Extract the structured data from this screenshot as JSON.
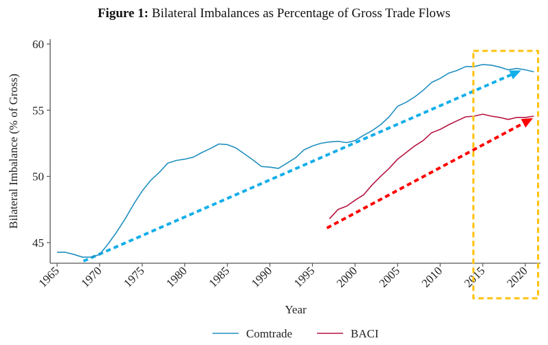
{
  "chart_data": {
    "type": "line",
    "title_prefix": "Figure 1:",
    "title": "Bilateral Imbalances as Percentage of Gross Trade Flows",
    "xlabel": "Year",
    "ylabel": "Bilateral Imbalance (% of Gross)",
    "xlim": [
      1964,
      2022
    ],
    "ylim": [
      43.5,
      60.3
    ],
    "xticks": [
      1965,
      1970,
      1975,
      1980,
      1985,
      1990,
      1995,
      2000,
      2005,
      2010,
      2015,
      2020
    ],
    "yticks": [
      45,
      50,
      55,
      60
    ],
    "grid": false,
    "legend_position": "bottom",
    "series": [
      {
        "name": "Comtrade",
        "color": "#1f8fbf",
        "x": [
          1965,
          1966,
          1967,
          1968,
          1969,
          1970,
          1971,
          1972,
          1973,
          1974,
          1975,
          1976,
          1977,
          1978,
          1979,
          1980,
          1981,
          1982,
          1983,
          1984,
          1985,
          1986,
          1987,
          1988,
          1989,
          1990,
          1991,
          1992,
          1993,
          1994,
          1995,
          1996,
          1997,
          1998,
          1999,
          2000,
          2001,
          2002,
          2003,
          2004,
          2005,
          2006,
          2007,
          2008,
          2009,
          2010,
          2011,
          2012,
          2013,
          2014,
          2015,
          2016,
          2017,
          2018,
          2019,
          2020,
          2021
        ],
        "values": [
          44.27,
          44.27,
          44.1,
          43.9,
          43.9,
          44.1,
          44.9,
          45.8,
          46.8,
          47.9,
          48.9,
          49.7,
          50.3,
          51.0,
          51.2,
          51.3,
          51.45,
          51.8,
          52.1,
          52.45,
          52.4,
          52.15,
          51.7,
          51.25,
          50.75,
          50.7,
          50.6,
          51.0,
          51.4,
          52.0,
          52.3,
          52.5,
          52.6,
          52.65,
          52.55,
          52.7,
          53.1,
          53.45,
          53.9,
          54.5,
          55.3,
          55.6,
          56.0,
          56.5,
          57.1,
          57.4,
          57.8,
          58.0,
          58.3,
          58.3,
          58.45,
          58.4,
          58.25,
          58.05,
          58.15,
          58.05,
          57.9
        ]
      },
      {
        "name": "BACI",
        "color": "#b5123e",
        "x": [
          1997,
          1998,
          1999,
          2000,
          2001,
          2002,
          2003,
          2004,
          2005,
          2006,
          2007,
          2008,
          2009,
          2010,
          2011,
          2012,
          2013,
          2014,
          2015,
          2016,
          2017,
          2018,
          2019,
          2020,
          2021
        ],
        "values": [
          46.8,
          47.5,
          47.75,
          48.2,
          48.6,
          49.35,
          50.0,
          50.6,
          51.3,
          51.8,
          52.3,
          52.7,
          53.3,
          53.55,
          53.9,
          54.2,
          54.5,
          54.55,
          54.7,
          54.55,
          54.45,
          54.3,
          54.45,
          54.45,
          54.55
        ]
      }
    ],
    "annotations": [
      {
        "type": "trend-arrow",
        "label": "Comtrade trend",
        "color": "#13aee9",
        "from": {
          "x": 1968.1,
          "y": 43.6
        },
        "to": {
          "x": 2019.5,
          "y": 58.0
        }
      },
      {
        "type": "trend-arrow",
        "label": "BACI trend",
        "color": "#ff0000",
        "from": {
          "x": 1996.7,
          "y": 46.1
        },
        "to": {
          "x": 2020.9,
          "y": 54.4
        }
      },
      {
        "type": "highlight-box",
        "label": "2014-2021 highlight",
        "color": "#ffc20e",
        "x_range": [
          2013.9,
          2021.5
        ]
      }
    ]
  }
}
